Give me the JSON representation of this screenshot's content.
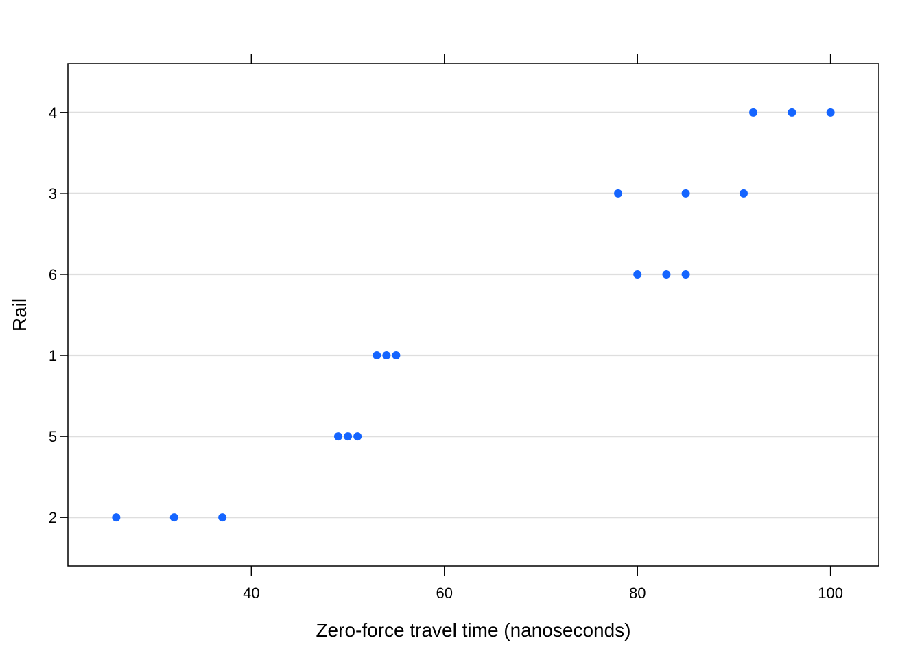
{
  "chart_data": {
    "type": "scatter",
    "subtype": "dotplot",
    "title": "",
    "xlabel": "Zero-force travel time (nanoseconds)",
    "ylabel": "Rail",
    "xlim": [
      21,
      105
    ],
    "x_ticks": [
      40,
      60,
      80,
      100
    ],
    "x_tick_labels": [
      "40",
      "60",
      "80",
      "100"
    ],
    "y_categories": [
      "2",
      "5",
      "1",
      "6",
      "3",
      "4"
    ],
    "grid": "horizontal",
    "marker_color": "#1565FF",
    "grid_color": "#DEDEDE",
    "series": [
      {
        "points": [
          {
            "rail": "2",
            "x": 26
          },
          {
            "rail": "2",
            "x": 32
          },
          {
            "rail": "2",
            "x": 37
          },
          {
            "rail": "5",
            "x": 49
          },
          {
            "rail": "5",
            "x": 50
          },
          {
            "rail": "5",
            "x": 51
          },
          {
            "rail": "1",
            "x": 53
          },
          {
            "rail": "1",
            "x": 54
          },
          {
            "rail": "1",
            "x": 55
          },
          {
            "rail": "6",
            "x": 80
          },
          {
            "rail": "6",
            "x": 83
          },
          {
            "rail": "6",
            "x": 85
          },
          {
            "rail": "3",
            "x": 78
          },
          {
            "rail": "3",
            "x": 85
          },
          {
            "rail": "3",
            "x": 91
          },
          {
            "rail": "4",
            "x": 92
          },
          {
            "rail": "4",
            "x": 96
          },
          {
            "rail": "4",
            "x": 100
          }
        ]
      }
    ]
  }
}
